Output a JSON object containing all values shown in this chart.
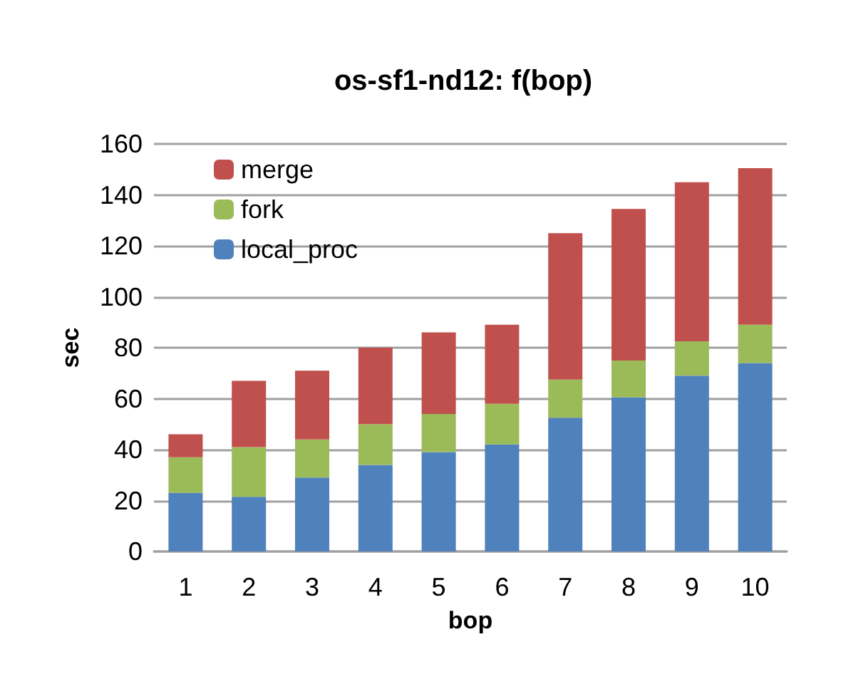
{
  "chart_data": {
    "type": "bar",
    "title": "os-sf1-nd12: f(bop)",
    "xlabel": "bop",
    "ylabel": "sec",
    "stacked": true,
    "categories": [
      "1",
      "2",
      "3",
      "4",
      "5",
      "6",
      "7",
      "8",
      "9",
      "10"
    ],
    "series": [
      {
        "name": "local_proc",
        "color": "#4f81bd",
        "values": [
          23,
          21.5,
          29,
          34,
          39,
          42,
          52.5,
          60.5,
          69,
          74
        ]
      },
      {
        "name": "fork",
        "color": "#9bbb59",
        "values": [
          14,
          19.5,
          15,
          16,
          15,
          16,
          15,
          14.5,
          13.5,
          15
        ]
      },
      {
        "name": "merge",
        "color": "#c0504d",
        "values": [
          9,
          26,
          27,
          30,
          32,
          31,
          57.5,
          59.5,
          62.5,
          61.5
        ]
      }
    ],
    "ylim": [
      0,
      160
    ],
    "yticks": [
      0,
      20,
      40,
      60,
      80,
      100,
      120,
      140,
      160
    ],
    "grid": "y",
    "legend": "top left"
  }
}
